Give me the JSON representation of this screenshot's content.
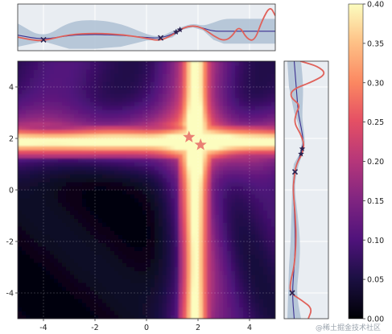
{
  "colors": {
    "heatmap_low": "#000004",
    "heatmap_mid": "#b5367a",
    "heatmap_high": "#fcfdbf",
    "side_fill": "#aebfd3",
    "true_curve": "#e0615a",
    "mean_curve": "#3b2f8f",
    "marker": "#2b2250",
    "star": "#e8726a",
    "grid": "#ffffff",
    "panel_bg": "#e9edf2"
  },
  "chart_data": [
    {
      "type": "heatmap",
      "panel": "main",
      "x_range": [
        -5,
        5
      ],
      "y_range": [
        -5,
        5
      ],
      "xticks": [
        "-4",
        "-2",
        "0",
        "2",
        "4"
      ],
      "yticks": [
        "-4",
        "-2",
        "0",
        "2",
        "4"
      ],
      "x_tick_values": [
        -4,
        -2,
        0,
        2,
        4
      ],
      "y_tick_values": [
        -4,
        -2,
        0,
        2,
        4
      ],
      "vertical_band_center_x": 1.9,
      "horizontal_band_center_y": 1.9,
      "stars": [
        {
          "x": 1.65,
          "y": 2.05
        },
        {
          "x": 2.1,
          "y": 1.75
        }
      ],
      "grid": true
    },
    {
      "type": "line",
      "panel": "top",
      "x_range": [
        -5,
        5
      ],
      "series": [
        {
          "role": "true",
          "x": [
            -5,
            -4.5,
            -4,
            -3,
            -2,
            -1,
            0,
            0.5,
            1,
            1.4,
            1.8,
            2.2,
            2.6,
            3.0,
            3.3,
            3.6,
            3.9,
            4.2,
            4.5,
            4.8,
            5
          ],
          "y": [
            0.15,
            0.08,
            0.05,
            0.22,
            0.25,
            0.22,
            0.12,
            0.05,
            0.2,
            0.38,
            0.45,
            0.38,
            0.18,
            0.05,
            0.15,
            0.45,
            0.1,
            0.05,
            0.6,
            0.95,
            0.7
          ]
        },
        {
          "role": "mean",
          "x": [
            -5,
            -4,
            -3,
            -2,
            -1,
            0,
            0.5,
            1,
            1.4,
            1.8,
            2.2,
            2.6,
            3.0,
            3.5,
            4,
            4.5,
            5
          ],
          "y": [
            0.2,
            0.08,
            0.2,
            0.22,
            0.2,
            0.14,
            0.12,
            0.22,
            0.38,
            0.45,
            0.38,
            0.3,
            0.3,
            0.3,
            0.3,
            0.3,
            0.3
          ]
        },
        {
          "role": "upper",
          "x": [
            -5,
            -4,
            -3,
            -2,
            -1,
            0,
            0.5,
            1,
            1.4,
            1.8,
            2.2,
            2.6,
            3.0,
            3.5,
            4,
            4.5,
            5
          ],
          "y": [
            0.5,
            0.12,
            0.55,
            0.6,
            0.5,
            0.22,
            0.15,
            0.3,
            0.42,
            0.5,
            0.44,
            0.52,
            0.62,
            0.62,
            0.62,
            0.62,
            0.62
          ]
        },
        {
          "role": "lower",
          "x": [
            -5,
            -4,
            -3,
            -2,
            -1,
            0,
            0.5,
            1,
            1.4,
            1.8,
            2.2,
            2.6,
            3.0,
            3.5,
            4,
            4.5,
            5
          ],
          "y": [
            -0.1,
            0.04,
            -0.15,
            -0.15,
            -0.1,
            0.06,
            0.09,
            0.14,
            0.34,
            0.4,
            0.32,
            0.08,
            -0.02,
            -0.02,
            -0.02,
            -0.02,
            -0.02
          ]
        }
      ],
      "observations_x": [
        -4.0,
        0.55,
        1.15,
        1.3
      ],
      "observation_kinds": [
        "x",
        "x",
        "star",
        "star"
      ],
      "y_range": [
        -0.2,
        1.0
      ]
    },
    {
      "type": "line",
      "panel": "right",
      "y_range": [
        -5,
        5
      ],
      "series": [
        {
          "role": "true",
          "y": [
            5,
            4.8,
            4.5,
            4.2,
            3.9,
            3.6,
            3.3,
            3.0,
            2.6,
            2.2,
            1.8,
            1.4,
            1.0,
            0.5,
            0,
            -1,
            -2,
            -3,
            -3.6,
            -4.0,
            -4.3,
            -4.6,
            -5
          ],
          "x": [
            0.3,
            0.75,
            0.95,
            0.6,
            0.1,
            0.05,
            0.3,
            0.2,
            0.15,
            0.3,
            0.4,
            0.35,
            0.2,
            0.15,
            0.12,
            0.18,
            0.2,
            0.15,
            0.05,
            0.05,
            0.35,
            0.6,
            0.5
          ]
        },
        {
          "role": "mean",
          "y": [
            5,
            4,
            3,
            2.6,
            2.2,
            1.8,
            1.4,
            1.0,
            0.5,
            0,
            -1,
            -2,
            -3,
            -4,
            -5
          ],
          "x": [
            0.15,
            0.2,
            0.25,
            0.3,
            0.35,
            0.38,
            0.32,
            0.2,
            0.15,
            0.13,
            0.16,
            0.18,
            0.15,
            0.1,
            0.15
          ]
        },
        {
          "role": "upper",
          "y": [
            5,
            4,
            3,
            2.6,
            2.2,
            1.8,
            1.4,
            1.0,
            0.5,
            0,
            -1,
            -2,
            -3,
            -4,
            -5
          ],
          "x": [
            0.32,
            0.38,
            0.35,
            0.36,
            0.4,
            0.42,
            0.36,
            0.26,
            0.19,
            0.16,
            0.24,
            0.3,
            0.28,
            0.2,
            0.32
          ]
        },
        {
          "role": "lower",
          "y": [
            5,
            4,
            3,
            2.6,
            2.2,
            1.8,
            1.4,
            1.0,
            0.5,
            0,
            -1,
            -2,
            -3,
            -4,
            -5
          ],
          "x": [
            -0.02,
            0.02,
            0.15,
            0.24,
            0.3,
            0.34,
            0.28,
            0.14,
            0.11,
            0.1,
            0.08,
            0.06,
            0.02,
            0.0,
            -0.02
          ]
        }
      ],
      "observations_y": [
        1.6,
        1.4,
        0.7,
        -4.0
      ],
      "observation_kinds": [
        "star",
        "star",
        "x",
        "x"
      ],
      "x_range": [
        -0.1,
        1.0
      ]
    },
    {
      "type": "heatmap",
      "panel": "colorbar",
      "range": [
        0.0,
        0.4
      ],
      "ticks": [
        "0.00",
        "0.05",
        "0.10",
        "0.15",
        "0.20",
        "0.25",
        "0.30",
        "0.35",
        "0.40"
      ],
      "tick_values": [
        0.0,
        0.05,
        0.1,
        0.15,
        0.2,
        0.25,
        0.3,
        0.35,
        0.4
      ]
    }
  ],
  "watermark": "@稀土掘金技术社区"
}
